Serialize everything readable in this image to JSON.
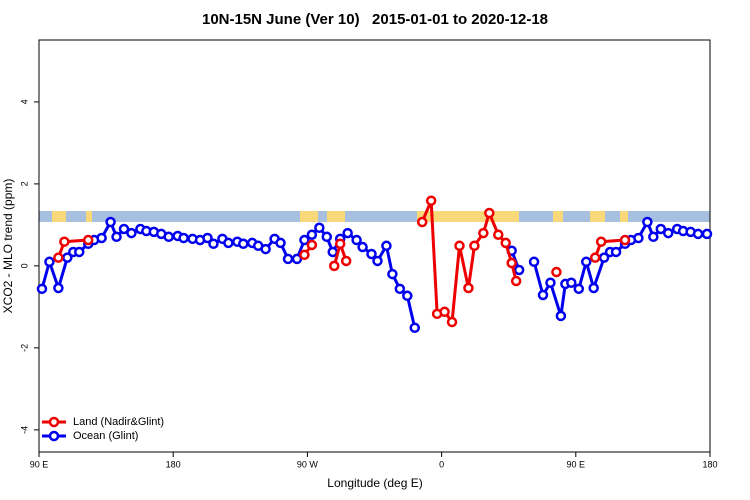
{
  "chart_data": {
    "type": "line",
    "title": "10N-15N June (Ver 10)   2015-01-01 to 2020-12-18",
    "x_label": "Longitude (deg E)",
    "y_label": "XCO2 - MLO trend (ppm)",
    "xlim": [
      90,
      540
    ],
    "ylim": [
      -4.54,
      5.51
    ],
    "xticks": [
      {
        "value": 90,
        "label": "90 E"
      },
      {
        "value": 180,
        "label": "180"
      },
      {
        "value": 270,
        "label": "90 W"
      },
      {
        "value": 360,
        "label": "0"
      },
      {
        "value": 450,
        "label": "90 E"
      },
      {
        "value": 540,
        "label": "180"
      }
    ],
    "yticks": [
      -4,
      -2,
      0,
      2,
      4
    ],
    "legend": "bottom-left",
    "series": [
      {
        "name": "Ocean (Glint)",
        "color": "#0000ee",
        "x": [
          92,
          97,
          103,
          109,
          113,
          117,
          123,
          127,
          132,
          138,
          142,
          147,
          152,
          158,
          162,
          167,
          172,
          177,
          183,
          187,
          193,
          198,
          203,
          207,
          213,
          217,
          223,
          227,
          233,
          237,
          242,
          248,
          252,
          257,
          263,
          268,
          273,
          278,
          283,
          287,
          292,
          297,
          303,
          307,
          313,
          317,
          323,
          327,
          332,
          337,
          342,
          375,
          407,
          412,
          417,
          422,
          428,
          433,
          440,
          443,
          447,
          452,
          457,
          462,
          469,
          473,
          477,
          483,
          487,
          492,
          498,
          502,
          507,
          512,
          518,
          522,
          527,
          532,
          538
        ],
        "values": [
          -0.56,
          0.1,
          -0.54,
          0.2,
          0.34,
          0.34,
          0.54,
          0.63,
          0.68,
          1.07,
          0.71,
          0.9,
          0.8,
          0.9,
          0.85,
          0.83,
          0.78,
          0.71,
          0.73,
          0.68,
          0.66,
          0.63,
          0.68,
          0.54,
          0.66,
          0.56,
          0.59,
          0.54,
          0.56,
          0.49,
          0.41,
          0.66,
          0.56,
          0.17,
          0.17,
          0.63,
          0.76,
          0.93,
          0.71,
          0.34,
          0.66,
          0.8,
          0.63,
          0.46,
          0.29,
          0.12,
          0.49,
          -0.2,
          -0.56,
          -0.73,
          -1.51,
          null,
          0.37,
          -0.1,
          null,
          0.1,
          -0.71,
          -0.41,
          -1.22,
          -0.44,
          -0.41,
          -0.56,
          0.1,
          -0.54,
          0.2,
          0.34,
          0.34,
          0.54,
          0.63,
          0.68,
          1.07,
          0.71,
          0.9,
          0.8,
          0.9,
          0.85,
          0.83,
          0.78,
          0.78
        ]
      },
      {
        "name": "Land (Nadir&Glint)",
        "color": "#ee0000",
        "x": [
          103,
          107,
          123,
          200,
          268,
          273,
          280,
          288,
          292,
          296,
          320,
          347,
          353,
          357,
          362,
          367,
          372,
          378,
          382,
          388,
          392,
          398,
          403,
          407,
          410,
          420,
          437,
          450,
          463,
          467,
          483
        ],
        "values": [
          0.2,
          0.59,
          0.63,
          null,
          0.27,
          0.51,
          null,
          0.0,
          0.54,
          0.12,
          null,
          1.07,
          1.59,
          -1.17,
          -1.12,
          -1.37,
          0.49,
          -0.54,
          0.49,
          0.8,
          1.29,
          0.76,
          0.56,
          0.07,
          -0.37,
          null,
          -0.15,
          null,
          0.2,
          0.59,
          0.63
        ]
      }
    ]
  }
}
